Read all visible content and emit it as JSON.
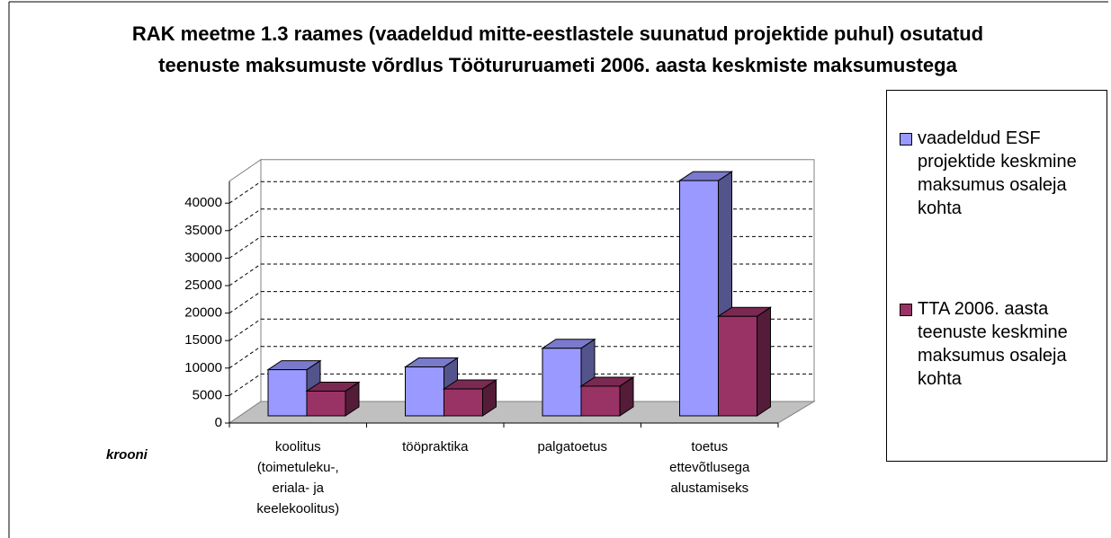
{
  "chart_data": {
    "type": "bar3d",
    "title": "RAK meetme 1.3 raames (vaadeldud mitte-eestlastele suunatud projektide puhul) osutatud teenuste maksumuste võrdlus Töötururuameti 2006. aasta keskmiste maksumustega",
    "y_label": "krooni",
    "categories": [
      "koolitus (toimetuleku-, eriala- ja keelekoolitus)",
      "tööpraktika",
      "palgatoetus",
      "toetus ettevõtlusega alustamiseks"
    ],
    "series": [
      {
        "name": "vaadeldud ESF projektide keskmine maksumus osaleja kohta",
        "color": "#9999ff",
        "values": [
          8400,
          8900,
          12300,
          42800
        ]
      },
      {
        "name": "TTA 2006. aasta teenuste keskmine maksumus osaleja kohta",
        "color": "#993366",
        "values": [
          4500,
          4900,
          5400,
          18100
        ]
      }
    ],
    "ylim": [
      0,
      44000
    ],
    "yticks": [
      0,
      5000,
      10000,
      15000,
      20000,
      25000,
      30000,
      35000,
      40000
    ],
    "grid": true,
    "legend": "right"
  }
}
